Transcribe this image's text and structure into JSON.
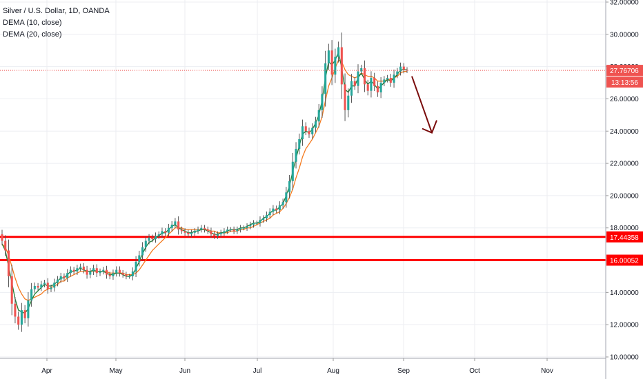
{
  "legend": {
    "symbol_line": "Silver / U.S. Dollar, 1D, OANDA",
    "ma1": "DEMA (10, close)",
    "ma2": "DEMA (20, close)"
  },
  "colors": {
    "up": "#26a69a",
    "down": "#ef5350",
    "wick": "#555555",
    "ma_fast": "#1e7e34",
    "ma_slow": "#f47b20",
    "hline": "#ff0000",
    "arrow": "#7a0c0c",
    "grid": "#eceef2",
    "price_label_bg": "#ef5350",
    "level_label_bg": "#ff0000"
  },
  "chart_data": {
    "type": "candlestick",
    "title": "Silver / U.S. Dollar, 1D, OANDA",
    "y_axis_ticks": [
      "10.00000",
      "12.00000",
      "14.00000",
      "16.00000",
      "18.00000",
      "20.00000",
      "22.00000",
      "24.00000",
      "26.00000",
      "28.00000",
      "30.00000",
      "32.00000"
    ],
    "x_axis_ticks": [
      "Apr",
      "May",
      "Jun",
      "Jul",
      "Aug",
      "Sep",
      "Oct",
      "Nov"
    ],
    "ylim": [
      10,
      32
    ],
    "last_price": "27.76706",
    "countdown": "13:13:56",
    "levels": [
      {
        "label": "17.44358",
        "value": 17.44358
      },
      {
        "label": "16.00052",
        "value": 16.00052
      }
    ],
    "arrow": {
      "from_value": 27.4,
      "to_value": 23.9,
      "direction": "down"
    },
    "closes": [
      17.2,
      16.6,
      15.0,
      13.3,
      12.5,
      12.0,
      12.9,
      12.4,
      13.5,
      14.2,
      14.4,
      14.3,
      14.5,
      14.6,
      14.2,
      14.3,
      14.6,
      14.8,
      15.0,
      14.9,
      15.2,
      15.4,
      15.3,
      15.5,
      15.6,
      15.4,
      15.1,
      15.3,
      15.5,
      15.2,
      15.3,
      15.4,
      15.1,
      15.0,
      15.2,
      15.4,
      15.2,
      15.1,
      15.0,
      15.0,
      15.3,
      15.9,
      16.3,
      16.8,
      17.2,
      17.4,
      17.3,
      17.5,
      17.6,
      17.8,
      17.7,
      18.0,
      18.2,
      18.4,
      17.9,
      17.8,
      17.7,
      17.6,
      17.7,
      17.8,
      17.9,
      18.0,
      17.9,
      17.8,
      17.6,
      17.5,
      17.6,
      17.7,
      17.8,
      17.9,
      17.9,
      17.8,
      17.9,
      18.0,
      18.0,
      18.1,
      18.2,
      18.3,
      18.3,
      18.5,
      18.6,
      18.8,
      19.0,
      19.2,
      19.1,
      19.4,
      19.6,
      20.2,
      20.9,
      22.1,
      22.9,
      23.5,
      24.3,
      24.0,
      23.8,
      24.2,
      24.6,
      25.3,
      26.3,
      28.2,
      29.0,
      27.5,
      28.6,
      29.2,
      26.9,
      25.3,
      26.2,
      27.1,
      26.8,
      27.7,
      27.9,
      26.9,
      26.5,
      27.3,
      26.8,
      26.4,
      27.0,
      27.2,
      27.3,
      27.0,
      27.5,
      27.7,
      28.0,
      27.8,
      27.76706
    ],
    "dema10": [
      17.0,
      16.6,
      15.6,
      14.6,
      13.6,
      12.9,
      12.8,
      12.7,
      13.0,
      13.5,
      13.9,
      14.1,
      14.3,
      14.5,
      14.4,
      14.4,
      14.5,
      14.7,
      14.9,
      14.9,
      15.1,
      15.3,
      15.3,
      15.4,
      15.5,
      15.4,
      15.3,
      15.3,
      15.4,
      15.3,
      15.3,
      15.3,
      15.2,
      15.1,
      15.1,
      15.2,
      15.2,
      15.1,
      15.0,
      15.0,
      15.1,
      15.5,
      15.9,
      16.4,
      16.8,
      17.1,
      17.2,
      17.4,
      17.5,
      17.7,
      17.7,
      17.9,
      18.1,
      18.2,
      18.0,
      17.9,
      17.8,
      17.7,
      17.7,
      17.8,
      17.8,
      17.9,
      17.9,
      17.8,
      17.7,
      17.6,
      17.6,
      17.7,
      17.7,
      17.8,
      17.9,
      17.9,
      17.9,
      18.0,
      18.0,
      18.1,
      18.2,
      18.3,
      18.3,
      18.4,
      18.6,
      18.7,
      18.9,
      19.1,
      19.1,
      19.3,
      19.5,
      20.0,
      20.6,
      21.5,
      22.3,
      23.1,
      23.8,
      24.0,
      23.9,
      24.1,
      24.5,
      25.0,
      25.9,
      27.3,
      28.3,
      28.1,
      28.4,
      28.9,
      27.9,
      26.6,
      26.4,
      26.8,
      26.8,
      27.3,
      27.6,
      27.2,
      26.9,
      27.1,
      26.9,
      26.6,
      26.8,
      27.0,
      27.2,
      27.1,
      27.3,
      27.5,
      27.8,
      27.8,
      27.8
    ],
    "dema20": [
      17.0,
      16.8,
      16.3,
      15.6,
      14.9,
      14.3,
      13.9,
      13.6,
      13.5,
      13.6,
      13.7,
      13.8,
      13.9,
      14.1,
      14.2,
      14.3,
      14.4,
      14.5,
      14.7,
      14.7,
      14.9,
      15.0,
      15.1,
      15.2,
      15.3,
      15.3,
      15.3,
      15.3,
      15.3,
      15.3,
      15.3,
      15.3,
      15.3,
      15.2,
      15.2,
      15.2,
      15.2,
      15.2,
      15.1,
      15.1,
      15.1,
      15.2,
      15.4,
      15.7,
      16.0,
      16.3,
      16.6,
      16.8,
      17.0,
      17.2,
      17.4,
      17.6,
      17.8,
      18.0,
      18.0,
      18.0,
      17.9,
      17.9,
      17.9,
      17.9,
      17.9,
      17.9,
      17.9,
      17.9,
      17.8,
      17.8,
      17.7,
      17.7,
      17.7,
      17.7,
      17.8,
      17.8,
      17.8,
      17.9,
      17.9,
      18.0,
      18.0,
      18.1,
      18.2,
      18.3,
      18.4,
      18.5,
      18.6,
      18.8,
      18.9,
      19.0,
      19.2,
      19.5,
      19.9,
      20.4,
      21.1,
      21.7,
      22.4,
      22.9,
      23.2,
      23.5,
      23.9,
      24.3,
      24.9,
      25.9,
      26.8,
      27.3,
      27.9,
      28.4,
      28.3,
      27.8,
      27.5,
      27.4,
      27.3,
      27.4,
      27.6,
      27.5,
      27.4,
      27.4,
      27.3,
      27.1,
      27.1,
      27.1,
      27.2,
      27.2,
      27.3,
      27.4,
      27.6,
      27.7,
      27.7
    ]
  }
}
